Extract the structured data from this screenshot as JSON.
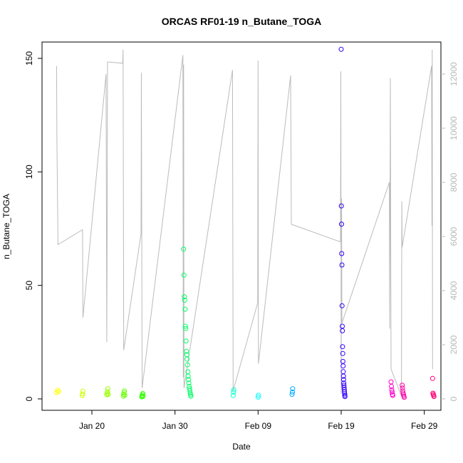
{
  "chart_data": {
    "type": "scatter",
    "title": "ORCAS RF01-19 n_Butane_TOGA",
    "xlabel": "Date",
    "ylabel": "n_Butane_TOGA",
    "x_unit": "date",
    "xlim": [
      "2016-01-14",
      "2016-03-02"
    ],
    "ylim": [
      0,
      155
    ],
    "y2lim": [
      0,
      13000
    ],
    "y_ticks": [
      0,
      50,
      100,
      150
    ],
    "y2_ticks": [
      0,
      2000,
      4000,
      6000,
      8000,
      10000,
      12000
    ],
    "x_ticks": [
      {
        "date": "2016-01-20",
        "label": "Jan 20"
      },
      {
        "date": "2016-01-30",
        "label": "Jan 30"
      },
      {
        "date": "2016-02-09",
        "label": "Feb 09"
      },
      {
        "date": "2016-02-19",
        "label": "Feb 19"
      },
      {
        "date": "2016-02-29",
        "label": "Feb 29"
      }
    ],
    "grid": false,
    "legend": "none",
    "series": [
      {
        "color": "#ffff00",
        "points": [
          [
            "2016-01-15 18:00",
            2.8
          ],
          [
            "2016-01-15 21:00",
            3.8
          ],
          [
            "2016-01-16 00:00",
            3.2
          ]
        ]
      },
      {
        "color": "#ccff00",
        "points": [
          [
            "2016-01-18 20:00",
            1.5
          ],
          [
            "2016-01-18 21:00",
            2.2
          ],
          [
            "2016-01-18 22:00",
            3.4
          ]
        ]
      },
      {
        "color": "#99ff00",
        "points": [
          [
            "2016-01-21 19:00",
            1.8
          ],
          [
            "2016-01-21 20:00",
            2.5
          ],
          [
            "2016-01-21 21:00",
            3.2
          ],
          [
            "2016-01-21 22:00",
            4.5
          ],
          [
            "2016-01-21 23:00",
            2.0
          ]
        ]
      },
      {
        "color": "#66ff00",
        "points": [
          [
            "2016-01-23 19:00",
            1.2
          ],
          [
            "2016-01-23 20:00",
            2.0
          ],
          [
            "2016-01-23 21:00",
            2.8
          ],
          [
            "2016-01-23 22:00",
            3.5
          ],
          [
            "2016-01-23 23:00",
            1.6
          ]
        ]
      },
      {
        "color": "#33ff00",
        "points": [
          [
            "2016-01-26 00:00",
            0.9
          ],
          [
            "2016-01-26 01:00",
            1.3
          ],
          [
            "2016-01-26 02:00",
            1.8
          ],
          [
            "2016-01-26 03:00",
            2.4
          ],
          [
            "2016-01-26 04:00",
            1.1
          ]
        ]
      },
      {
        "color": "#00ff66",
        "points": [
          [
            "2016-01-31 01:00",
            66
          ],
          [
            "2016-01-31 02:00",
            54.5
          ],
          [
            "2016-01-31 03:00",
            45
          ],
          [
            "2016-01-31 04:00",
            43.5
          ],
          [
            "2016-01-31 05:00",
            39.5
          ],
          [
            "2016-01-31 06:00",
            32
          ],
          [
            "2016-01-31 07:00",
            31
          ],
          [
            "2016-01-31 08:00",
            25.5
          ],
          [
            "2016-01-31 09:00",
            21
          ],
          [
            "2016-01-31 10:00",
            19.5
          ],
          [
            "2016-01-31 11:00",
            17.5
          ],
          [
            "2016-01-31 12:00",
            15
          ],
          [
            "2016-01-31 13:00",
            12
          ],
          [
            "2016-01-31 14:00",
            10
          ],
          [
            "2016-01-31 15:00",
            8.5
          ],
          [
            "2016-01-31 16:00",
            7
          ],
          [
            "2016-01-31 17:00",
            5.5
          ],
          [
            "2016-01-31 18:00",
            4.5
          ],
          [
            "2016-01-31 19:00",
            3.5
          ],
          [
            "2016-01-31 20:00",
            2.5
          ],
          [
            "2016-01-31 21:00",
            1.8
          ],
          [
            "2016-01-31 22:00",
            1.2
          ]
        ]
      },
      {
        "color": "#00ffcc",
        "points": [
          [
            "2016-02-06 00:00",
            1.5
          ],
          [
            "2016-02-06 01:00",
            3.0
          ],
          [
            "2016-02-06 02:00",
            4.0
          ]
        ]
      },
      {
        "color": "#00ffff",
        "points": [
          [
            "2016-02-09 00:00",
            0.8
          ],
          [
            "2016-02-09 01:00",
            1.6
          ]
        ]
      },
      {
        "color": "#00aaff",
        "points": [
          [
            "2016-02-13 02:00",
            2.0
          ],
          [
            "2016-02-13 03:00",
            3.0
          ],
          [
            "2016-02-13 04:00",
            4.5
          ]
        ]
      },
      {
        "color": "#3300ff",
        "points": [
          [
            "2016-02-19 00:00",
            154
          ],
          [
            "2016-02-19 00:30",
            85
          ],
          [
            "2016-02-19 01:00",
            77
          ],
          [
            "2016-02-19 01:30",
            64
          ],
          [
            "2016-02-19 02:00",
            59
          ],
          [
            "2016-02-19 02:30",
            41
          ],
          [
            "2016-02-19 03:00",
            32
          ],
          [
            "2016-02-19 03:30",
            30
          ],
          [
            "2016-02-19 04:00",
            23
          ],
          [
            "2016-02-19 04:30",
            20
          ],
          [
            "2016-02-19 05:00",
            16.5
          ],
          [
            "2016-02-19 05:30",
            14.5
          ],
          [
            "2016-02-19 06:00",
            12
          ],
          [
            "2016-02-19 06:30",
            10
          ],
          [
            "2016-02-19 07:00",
            8.5
          ],
          [
            "2016-02-19 07:30",
            7
          ],
          [
            "2016-02-19 08:00",
            6
          ],
          [
            "2016-02-19 08:30",
            5
          ],
          [
            "2016-02-19 09:00",
            4
          ],
          [
            "2016-02-19 09:30",
            3
          ],
          [
            "2016-02-19 10:00",
            2.2
          ],
          [
            "2016-02-19 10:30",
            1.5
          ],
          [
            "2016-02-19 11:00",
            1.0
          ]
        ]
      },
      {
        "color": "#ff00cc",
        "points": [
          [
            "2016-02-25 00:00",
            7.5
          ],
          [
            "2016-02-25 01:00",
            5.5
          ],
          [
            "2016-02-25 02:00",
            4.0
          ],
          [
            "2016-02-25 03:00",
            3.0
          ],
          [
            "2016-02-25 04:00",
            2.0
          ],
          [
            "2016-02-25 05:00",
            1.5
          ]
        ]
      },
      {
        "color": "#ff00aa",
        "points": [
          [
            "2016-02-26 08:00",
            6.0
          ],
          [
            "2016-02-26 09:00",
            4.8
          ],
          [
            "2016-02-26 10:00",
            3.5
          ],
          [
            "2016-02-26 11:00",
            2.5
          ],
          [
            "2016-02-26 12:00",
            1.8
          ],
          [
            "2016-02-26 13:00",
            1.2
          ],
          [
            "2016-02-26 14:00",
            0.7
          ]
        ]
      },
      {
        "color": "#ff0077",
        "points": [
          [
            "2016-03-01 00:00",
            9.0
          ],
          [
            "2016-03-01 01:00",
            2.5
          ],
          [
            "2016-03-01 02:00",
            2.0
          ],
          [
            "2016-03-01 03:00",
            1.5
          ],
          [
            "2016-03-01 04:00",
            1.0
          ]
        ]
      }
    ],
    "secondary_line": {
      "color": "#bbbbbb",
      "points": [
        [
          "2016-01-15 18:00",
          12300
        ],
        [
          "2016-01-15 19:00",
          9600
        ],
        [
          "2016-01-15 22:00",
          5700
        ],
        [
          "2016-01-18 21:00",
          6250
        ],
        [
          "2016-01-18 22:00",
          3000
        ],
        [
          "2016-01-21 17:00",
          12000
        ],
        [
          "2016-01-21 19:00",
          2100
        ],
        [
          "2016-01-21 20:00",
          5800
        ],
        [
          "2016-01-21 21:00",
          12450
        ],
        [
          "2016-01-23 17:00",
          12400
        ],
        [
          "2016-01-23 18:00",
          12900
        ],
        [
          "2016-01-23 20:00",
          1800
        ],
        [
          "2016-01-25 22:00",
          6100
        ],
        [
          "2016-01-25 23:00",
          12050
        ],
        [
          "2016-01-26 01:00",
          400
        ],
        [
          "2016-01-30 23:00",
          12700
        ],
        [
          "2016-01-31 00:00",
          800
        ],
        [
          "2016-01-31 01:00",
          12350
        ],
        [
          "2016-01-31 02:00",
          400
        ],
        [
          "2016-02-05 22:00",
          12150
        ],
        [
          "2016-02-06 00:00",
          300
        ],
        [
          "2016-02-08 23:00",
          3550
        ],
        [
          "2016-02-09 00:00",
          12500
        ],
        [
          "2016-02-09 01:00",
          1300
        ],
        [
          "2016-02-12 22:00",
          11950
        ],
        [
          "2016-02-13 00:00",
          6450
        ],
        [
          "2016-02-18 22:00",
          5800
        ],
        [
          "2016-02-18 23:00",
          12100
        ],
        [
          "2016-02-19 00:00",
          200
        ],
        [
          "2016-02-19 01:00",
          7400
        ],
        [
          "2016-02-19 02:00",
          2800
        ],
        [
          "2016-02-24 19:00",
          8000
        ],
        [
          "2016-02-24 20:00",
          2600
        ],
        [
          "2016-02-24 22:00",
          11850
        ],
        [
          "2016-02-25 00:00",
          1100
        ],
        [
          "2016-02-26 06:00",
          100
        ],
        [
          "2016-02-26 07:00",
          7300
        ],
        [
          "2016-02-26 08:00",
          5600
        ],
        [
          "2016-02-29 21:00",
          12300
        ],
        [
          "2016-02-29 22:00",
          6400
        ],
        [
          "2016-02-29 23:00",
          12900
        ],
        [
          "2016-03-01 00:00",
          1100
        ]
      ]
    }
  }
}
